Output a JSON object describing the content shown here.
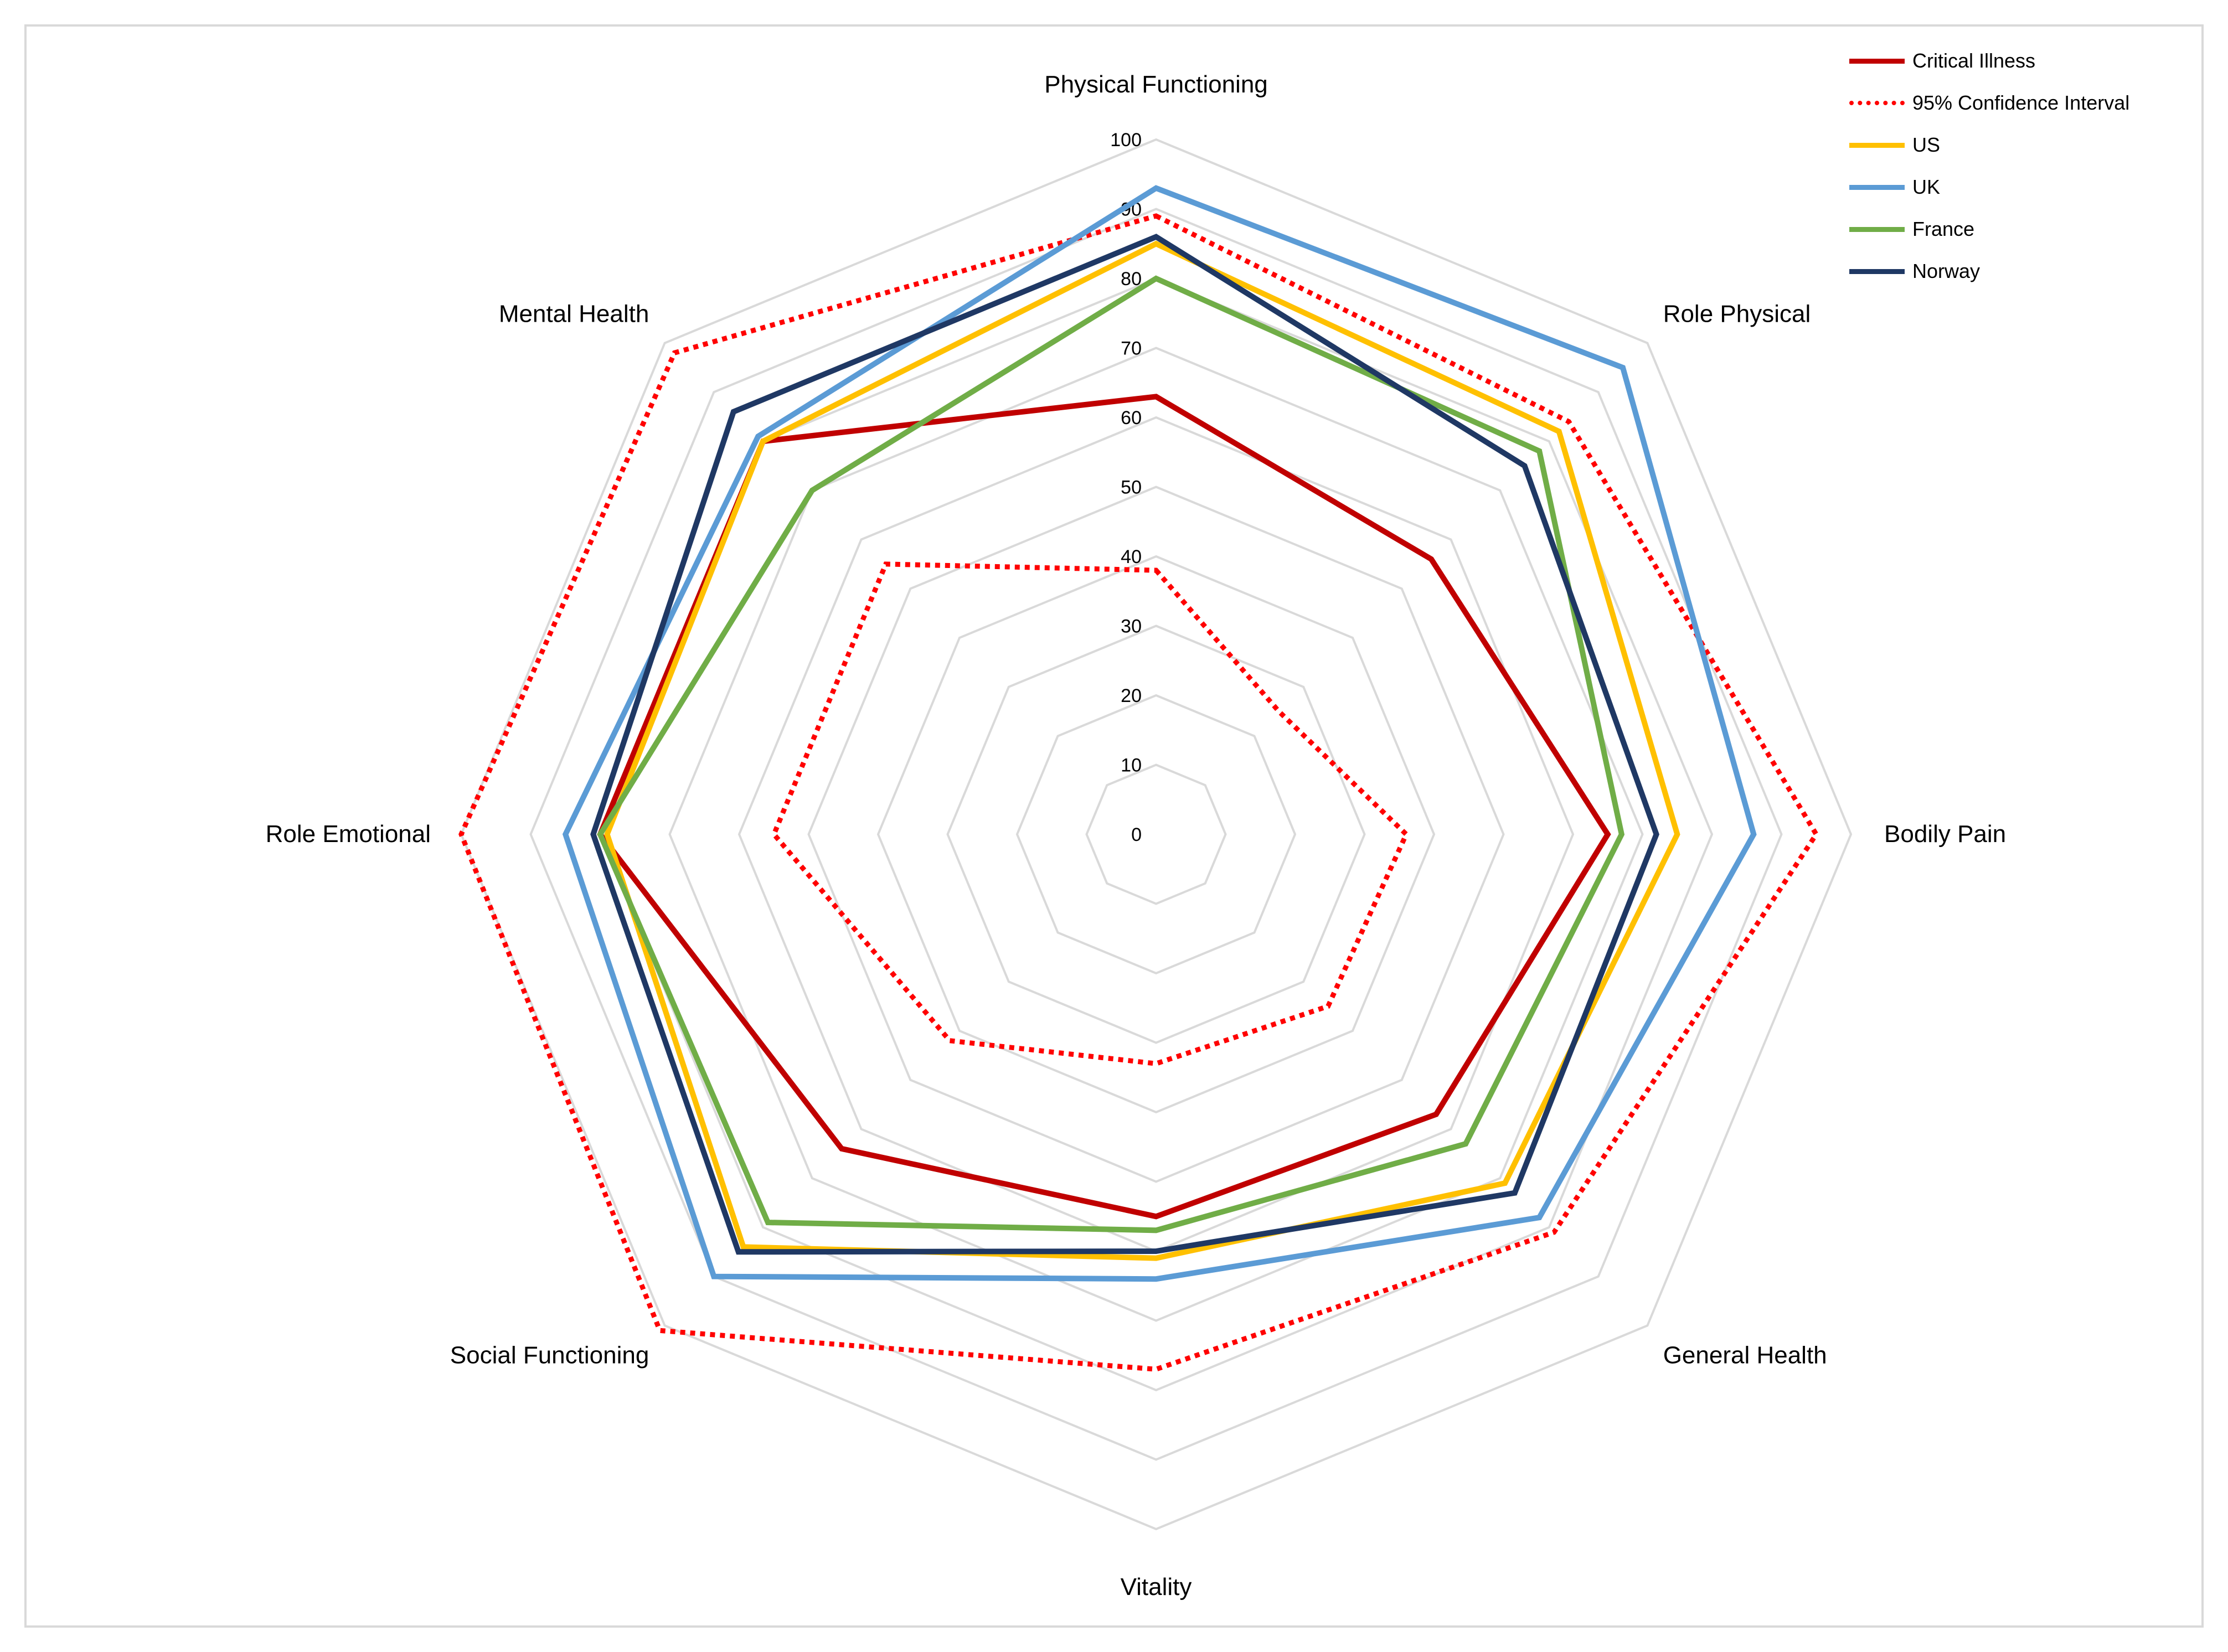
{
  "chart_data": {
    "type": "radar",
    "title": "",
    "axes": [
      "Physical Functioning",
      "Role Physical",
      "Bodily Pain",
      "General Health",
      "Vitality",
      "Social Functioning",
      "Role Emotional",
      "Mental Health"
    ],
    "rlim": [
      0,
      100
    ],
    "ticks": [
      0,
      10,
      20,
      30,
      40,
      50,
      60,
      70,
      80,
      90,
      100
    ],
    "tick_labels": [
      "0",
      "10",
      "20",
      "30",
      "40",
      "50",
      "60",
      "70",
      "80",
      "90",
      "100"
    ],
    "grid": true,
    "legend_position": "top-right",
    "series": [
      {
        "name": "Critical Illness",
        "values": [
          63,
          56,
          65,
          57,
          55,
          64,
          80,
          80
        ],
        "color": "#c00000",
        "dash": "solid"
      },
      {
        "name": "95% Confidence Interval",
        "values": [
          38,
          25,
          36,
          35,
          33,
          42,
          55,
          55
        ],
        "color": "#ff0000",
        "dash": "dotted",
        "group": "ci"
      },
      {
        "name": "95% Confidence Interval (upper)",
        "values": [
          89,
          84,
          95,
          81,
          77,
          101,
          100,
          98
        ],
        "color": "#ff0000",
        "dash": "dotted",
        "group": "ci",
        "in_legend": false
      },
      {
        "name": "US",
        "values": [
          85,
          82,
          75,
          71,
          61,
          84,
          79,
          80
        ],
        "color": "#ffc000",
        "dash": "solid"
      },
      {
        "name": "UK",
        "values": [
          93,
          95,
          86,
          78,
          64,
          90,
          85,
          81
        ],
        "color": "#5b9bd5",
        "dash": "solid"
      },
      {
        "name": "France",
        "values": [
          80,
          78,
          67,
          63,
          57,
          79,
          80,
          70
        ],
        "color": "#70ad47",
        "dash": "solid"
      },
      {
        "name": "Norway",
        "values": [
          86,
          75,
          72,
          73,
          60,
          85,
          81,
          86
        ],
        "color": "#1f3864",
        "dash": "solid"
      }
    ]
  }
}
